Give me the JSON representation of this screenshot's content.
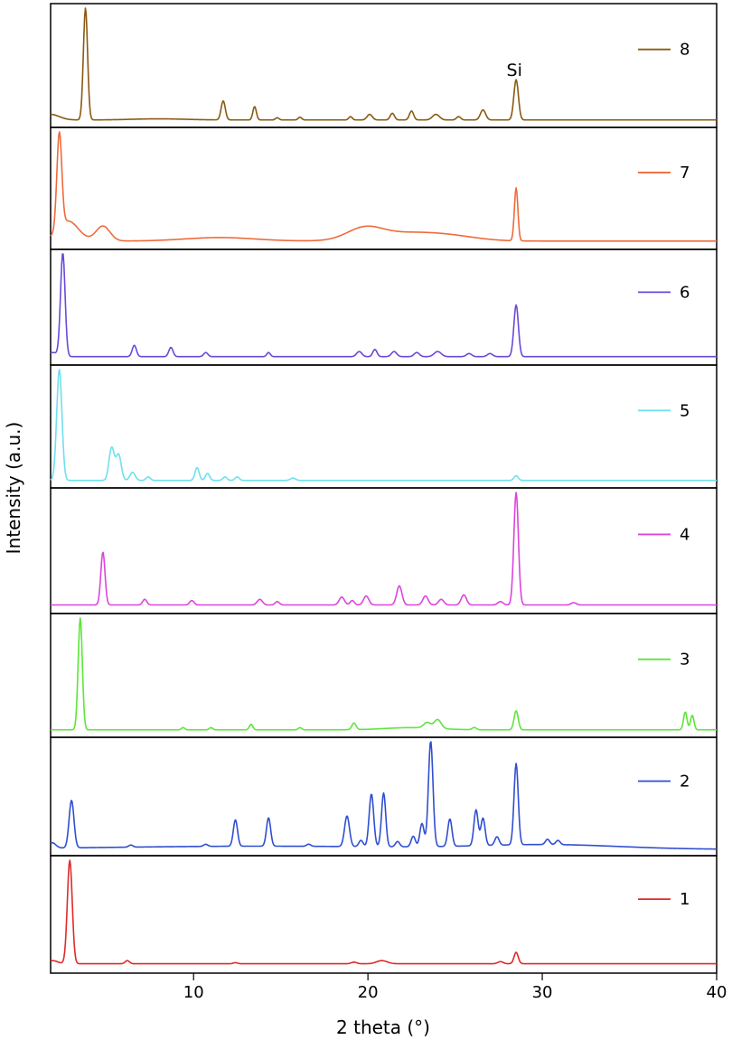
{
  "chart_data": {
    "type": "line",
    "xlabel": "2 theta (°)",
    "ylabel": "Intensity (a.u.)",
    "xlim": [
      1.8,
      40
    ],
    "x_ticks": [
      10,
      20,
      30,
      40
    ],
    "x_tick_labels": [
      "10",
      "20",
      "30",
      "40"
    ],
    "y_ticks_shown": false,
    "legend_placement": "right of each panel",
    "annotations": [
      {
        "text": "Si",
        "x": 28.4,
        "series": "8"
      }
    ],
    "series": [
      {
        "name": "8",
        "color": "#8a5a10",
        "baseline": 0.01,
        "peaks": [
          [
            3.8,
            1.0,
            0.12
          ],
          [
            11.7,
            0.17,
            0.12
          ],
          [
            13.5,
            0.12,
            0.1
          ],
          [
            14.8,
            0.02,
            0.1
          ],
          [
            16.1,
            0.025,
            0.1
          ],
          [
            19.0,
            0.03,
            0.1
          ],
          [
            20.1,
            0.05,
            0.15
          ],
          [
            21.4,
            0.06,
            0.12
          ],
          [
            22.5,
            0.08,
            0.12
          ],
          [
            23.9,
            0.05,
            0.2
          ],
          [
            25.2,
            0.03,
            0.12
          ],
          [
            26.6,
            0.09,
            0.15
          ],
          [
            28.5,
            0.36,
            0.13
          ]
        ],
        "humps": [
          [
            1.8,
            0.05,
            0.5
          ],
          [
            8.0,
            0.01,
            1.5
          ]
        ]
      },
      {
        "name": "7",
        "color": "#ef6a3a",
        "baseline": 0.02,
        "peaks": [
          [
            2.3,
            0.95,
            0.14
          ],
          [
            28.5,
            0.53,
            0.1
          ]
        ],
        "humps": [
          [
            2.8,
            0.2,
            0.6
          ],
          [
            4.8,
            0.15,
            0.4
          ],
          [
            11.5,
            0.035,
            2.0
          ],
          [
            19.8,
            0.11,
            1.0
          ],
          [
            22.3,
            0.08,
            2.0
          ],
          [
            25.0,
            0.03,
            1.5
          ]
        ]
      },
      {
        "name": "6",
        "color": "#6a4ad8",
        "baseline": 0.02,
        "peaks": [
          [
            2.5,
            1.0,
            0.13
          ],
          [
            6.6,
            0.11,
            0.12
          ],
          [
            8.7,
            0.09,
            0.12
          ],
          [
            10.7,
            0.04,
            0.12
          ],
          [
            14.3,
            0.04,
            0.1
          ],
          [
            19.5,
            0.05,
            0.15
          ],
          [
            20.4,
            0.07,
            0.12
          ],
          [
            21.5,
            0.05,
            0.15
          ],
          [
            22.8,
            0.04,
            0.15
          ],
          [
            24.0,
            0.05,
            0.2
          ],
          [
            25.8,
            0.03,
            0.15
          ],
          [
            27.0,
            0.03,
            0.15
          ],
          [
            28.5,
            0.5,
            0.13
          ]
        ],
        "humps": [
          [
            1.9,
            0.04,
            0.3
          ]
        ]
      },
      {
        "name": "5",
        "color": "#6fe0ee",
        "baseline": 0.01,
        "peaks": [
          [
            2.3,
            0.95,
            0.15
          ],
          [
            5.3,
            0.28,
            0.15
          ],
          [
            5.7,
            0.22,
            0.15
          ],
          [
            6.5,
            0.07,
            0.15
          ],
          [
            7.4,
            0.03,
            0.12
          ],
          [
            10.2,
            0.11,
            0.12
          ],
          [
            10.8,
            0.06,
            0.12
          ],
          [
            11.8,
            0.03,
            0.12
          ],
          [
            12.5,
            0.03,
            0.12
          ],
          [
            15.7,
            0.02,
            0.15
          ],
          [
            28.5,
            0.04,
            0.12
          ]
        ],
        "humps": []
      },
      {
        "name": "4",
        "color": "#dd44dd",
        "baseline": 0.02,
        "peaks": [
          [
            4.8,
            0.47,
            0.12
          ],
          [
            7.2,
            0.05,
            0.12
          ],
          [
            9.9,
            0.04,
            0.12
          ],
          [
            13.8,
            0.05,
            0.15
          ],
          [
            14.8,
            0.03,
            0.12
          ],
          [
            18.5,
            0.07,
            0.15
          ],
          [
            19.1,
            0.04,
            0.12
          ],
          [
            19.9,
            0.08,
            0.15
          ],
          [
            21.8,
            0.17,
            0.15
          ],
          [
            23.3,
            0.08,
            0.15
          ],
          [
            24.2,
            0.05,
            0.15
          ],
          [
            25.5,
            0.09,
            0.15
          ],
          [
            27.6,
            0.03,
            0.15
          ],
          [
            28.5,
            1.0,
            0.13
          ],
          [
            31.8,
            0.02,
            0.15
          ]
        ],
        "humps": []
      },
      {
        "name": "3",
        "color": "#5ce63a",
        "baseline": 0.01,
        "peaks": [
          [
            3.5,
            1.0,
            0.12
          ],
          [
            9.4,
            0.02,
            0.1
          ],
          [
            11.0,
            0.02,
            0.1
          ],
          [
            13.3,
            0.05,
            0.1
          ],
          [
            16.1,
            0.02,
            0.1
          ],
          [
            19.2,
            0.06,
            0.12
          ],
          [
            23.4,
            0.05,
            0.2
          ],
          [
            24.0,
            0.08,
            0.2
          ],
          [
            26.1,
            0.02,
            0.12
          ],
          [
            28.5,
            0.17,
            0.12
          ],
          [
            38.2,
            0.16,
            0.1
          ],
          [
            38.6,
            0.13,
            0.1
          ]
        ],
        "humps": [
          [
            22.5,
            0.02,
            1.5
          ]
        ]
      },
      {
        "name": "2",
        "color": "#2f4fd0",
        "baseline": 0.0,
        "peaks": [
          [
            1.9,
            0.05,
            0.2
          ],
          [
            3.0,
            0.45,
            0.14
          ],
          [
            6.4,
            0.02,
            0.12
          ],
          [
            10.7,
            0.02,
            0.12
          ],
          [
            12.4,
            0.25,
            0.12
          ],
          [
            14.3,
            0.27,
            0.12
          ],
          [
            16.6,
            0.02,
            0.12
          ],
          [
            18.8,
            0.29,
            0.14
          ],
          [
            19.6,
            0.06,
            0.12
          ],
          [
            20.2,
            0.5,
            0.13
          ],
          [
            20.9,
            0.51,
            0.12
          ],
          [
            21.7,
            0.05,
            0.12
          ],
          [
            22.6,
            0.1,
            0.12
          ],
          [
            23.1,
            0.22,
            0.12
          ],
          [
            23.6,
            1.0,
            0.13
          ],
          [
            24.7,
            0.26,
            0.12
          ],
          [
            26.2,
            0.34,
            0.12
          ],
          [
            26.6,
            0.26,
            0.12
          ],
          [
            27.4,
            0.08,
            0.12
          ],
          [
            28.5,
            0.77,
            0.12
          ],
          [
            30.3,
            0.05,
            0.12
          ],
          [
            30.9,
            0.04,
            0.12
          ]
        ],
        "humps": [
          [
            14.0,
            0.03,
            9.0
          ],
          [
            30.5,
            0.04,
            4.0
          ]
        ]
      },
      {
        "name": "1",
        "color": "#e02a2a",
        "baseline": 0.03,
        "peaks": [
          [
            2.9,
            1.0,
            0.14
          ],
          [
            6.2,
            0.03,
            0.12
          ],
          [
            12.4,
            0.01,
            0.12
          ],
          [
            19.2,
            0.015,
            0.15
          ],
          [
            20.8,
            0.03,
            0.3
          ],
          [
            27.6,
            0.02,
            0.15
          ],
          [
            28.5,
            0.11,
            0.12
          ]
        ],
        "humps": [
          [
            1.9,
            0.03,
            0.3
          ]
        ]
      }
    ]
  }
}
